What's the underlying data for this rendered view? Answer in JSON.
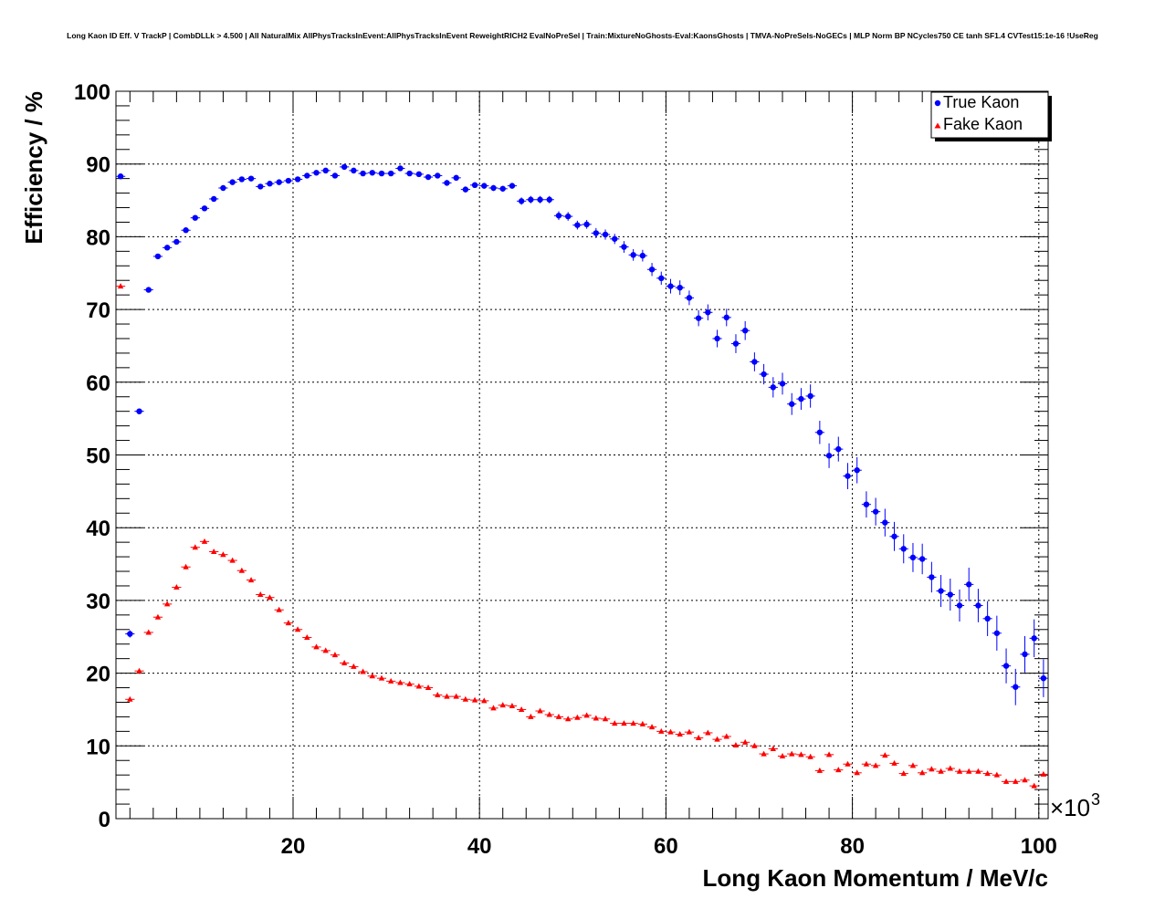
{
  "chart_data": {
    "type": "scatter",
    "title": "Long Kaon ID Eff. V TrackP | CombDLLk > 4.500 | All NaturalMix AllPhysTracksInEvent:AllPhysTracksInEvent ReweightRICH2 EvalNoPreSel | Train:MixtureNoGhosts-Eval:KaonsGhosts | TMVA-NoPreSels-NoGECs | MLP Norm BP NCycles750 CE tanh SF1.4 CVTest15:1e-16 !UseReg",
    "xlabel": "Long Kaon Momentum / MeV/c",
    "ylabel": "Efficiency / %",
    "x_multiplier": "×10",
    "x_multiplier_exp": "3",
    "xlim": [
      1,
      101
    ],
    "ylim": [
      0,
      100
    ],
    "x_ticks": [
      20,
      40,
      60,
      80,
      100
    ],
    "x_tick_labels": [
      "20",
      "40",
      "60",
      "80",
      "100"
    ],
    "y_ticks": [
      0,
      10,
      20,
      30,
      40,
      50,
      60,
      70,
      80,
      90,
      100
    ],
    "y_tick_labels": [
      "0",
      "10",
      "20",
      "30",
      "40",
      "50",
      "60",
      "70",
      "80",
      "90",
      "100"
    ],
    "grid": true,
    "legend_position": "top-right",
    "x": [
      1.5,
      2.5,
      3.5,
      4.5,
      5.5,
      6.5,
      7.5,
      8.5,
      9.5,
      10.5,
      11.5,
      12.5,
      13.5,
      14.5,
      15.5,
      16.5,
      17.5,
      18.5,
      19.5,
      20.5,
      21.5,
      22.5,
      23.5,
      24.5,
      25.5,
      26.5,
      27.5,
      28.5,
      29.5,
      30.5,
      31.5,
      32.5,
      33.5,
      34.5,
      35.5,
      36.5,
      37.5,
      38.5,
      39.5,
      40.5,
      41.5,
      42.5,
      43.5,
      44.5,
      45.5,
      46.5,
      47.5,
      48.5,
      49.5,
      50.5,
      51.5,
      52.5,
      53.5,
      54.5,
      55.5,
      56.5,
      57.5,
      58.5,
      59.5,
      60.5,
      61.5,
      62.5,
      63.5,
      64.5,
      65.5,
      66.5,
      67.5,
      68.5,
      69.5,
      70.5,
      71.5,
      72.5,
      73.5,
      74.5,
      75.5,
      76.5,
      77.5,
      78.5,
      79.5,
      80.5,
      81.5,
      82.5,
      83.5,
      84.5,
      85.5,
      86.5,
      87.5,
      88.5,
      89.5,
      90.5,
      91.5,
      92.5,
      93.5,
      94.5,
      95.5,
      96.5,
      97.5,
      98.5,
      99.5,
      100.5
    ],
    "series": [
      {
        "name": "True Kaon",
        "color": "#0000ff",
        "marker": "circle",
        "values": [
          88.3,
          25.4,
          56.0,
          72.7,
          77.3,
          78.5,
          79.3,
          80.9,
          82.6,
          83.9,
          85.2,
          86.7,
          87.5,
          87.9,
          88.0,
          86.9,
          87.3,
          87.5,
          87.7,
          87.9,
          88.4,
          88.8,
          89.1,
          88.4,
          89.6,
          89.1,
          88.7,
          88.8,
          88.7,
          88.7,
          89.4,
          88.7,
          88.6,
          88.2,
          88.4,
          87.4,
          88.1,
          86.5,
          87.1,
          87.0,
          86.7,
          86.6,
          87.0,
          84.9,
          85.1,
          85.1,
          85.1,
          82.9,
          82.8,
          81.6,
          81.7,
          80.5,
          80.3,
          79.7,
          78.6,
          77.5,
          77.4,
          75.5,
          74.3,
          73.2,
          73.0,
          71.6,
          68.8,
          69.6,
          66.0,
          68.9,
          65.3,
          67.1,
          62.8,
          61.1,
          59.3,
          59.8,
          57.0,
          57.7,
          58.1,
          53.1,
          49.9,
          50.8,
          47.1,
          47.9,
          43.2,
          42.2,
          40.7,
          38.8,
          37.1,
          35.9,
          35.7,
          33.2,
          31.3,
          30.8,
          29.3,
          32.2,
          29.3,
          27.5,
          25.5,
          21.0,
          18.1,
          22.6,
          24.8,
          19.3
        ],
        "errors": [
          0.3,
          0.5,
          0.4,
          0.3,
          0.3,
          0.3,
          0.3,
          0.3,
          0.3,
          0.3,
          0.3,
          0.3,
          0.3,
          0.3,
          0.3,
          0.3,
          0.3,
          0.3,
          0.3,
          0.3,
          0.3,
          0.3,
          0.3,
          0.3,
          0.3,
          0.3,
          0.3,
          0.3,
          0.3,
          0.3,
          0.3,
          0.3,
          0.3,
          0.3,
          0.3,
          0.4,
          0.4,
          0.4,
          0.4,
          0.4,
          0.4,
          0.4,
          0.4,
          0.5,
          0.5,
          0.5,
          0.5,
          0.6,
          0.6,
          0.6,
          0.6,
          0.7,
          0.7,
          0.7,
          0.8,
          0.8,
          0.8,
          0.9,
          0.9,
          1.0,
          1.0,
          1.0,
          1.1,
          1.1,
          1.2,
          1.2,
          1.3,
          1.3,
          1.3,
          1.4,
          1.4,
          1.5,
          1.5,
          1.5,
          1.6,
          1.6,
          1.7,
          1.7,
          1.8,
          1.8,
          1.8,
          1.9,
          1.9,
          2.0,
          2.0,
          2.0,
          2.1,
          2.1,
          2.2,
          2.2,
          2.2,
          2.3,
          2.3,
          2.4,
          2.4,
          2.4,
          2.5,
          2.5,
          2.6,
          2.6
        ]
      },
      {
        "name": "Fake Kaon",
        "color": "#ff0000",
        "marker": "triangle",
        "values": [
          73.2,
          16.4,
          20.3,
          25.6,
          27.7,
          29.5,
          31.8,
          34.6,
          37.3,
          38.1,
          36.7,
          36.3,
          35.5,
          34.1,
          32.8,
          30.8,
          30.4,
          28.7,
          26.9,
          26.0,
          24.9,
          23.6,
          23.1,
          22.5,
          21.4,
          20.9,
          20.2,
          19.6,
          19.3,
          18.9,
          18.7,
          18.5,
          18.2,
          18.0,
          17.0,
          16.8,
          16.8,
          16.4,
          16.3,
          16.2,
          15.2,
          15.6,
          15.5,
          15.0,
          14.0,
          14.8,
          14.3,
          14.0,
          13.7,
          13.9,
          14.2,
          13.8,
          13.7,
          13.1,
          13.1,
          13.1,
          13.0,
          12.6,
          12.0,
          11.9,
          11.6,
          11.9,
          11.1,
          11.8,
          10.9,
          11.3,
          10.1,
          10.5,
          10.0,
          8.9,
          9.6,
          8.6,
          8.9,
          8.8,
          8.5,
          6.6,
          8.8,
          6.7,
          7.5,
          6.3,
          7.5,
          7.3,
          8.7,
          7.6,
          6.2,
          7.3,
          6.3,
          6.8,
          6.5,
          6.9,
          6.5,
          6.5,
          6.5,
          6.2,
          6.0,
          5.1,
          5.1,
          5.3,
          4.5,
          6.1
        ],
        "errors": [
          0.3,
          0.2,
          0.2,
          0.2,
          0.2,
          0.2,
          0.2,
          0.2,
          0.2,
          0.2,
          0.2,
          0.2,
          0.2,
          0.2,
          0.2,
          0.2,
          0.2,
          0.2,
          0.2,
          0.2,
          0.2,
          0.2,
          0.2,
          0.2,
          0.2,
          0.2,
          0.2,
          0.2,
          0.2,
          0.2,
          0.2,
          0.2,
          0.2,
          0.2,
          0.2,
          0.2,
          0.2,
          0.2,
          0.2,
          0.2,
          0.2,
          0.2,
          0.2,
          0.2,
          0.2,
          0.2,
          0.2,
          0.2,
          0.2,
          0.2,
          0.2,
          0.2,
          0.2,
          0.2,
          0.2,
          0.2,
          0.2,
          0.2,
          0.2,
          0.2,
          0.2,
          0.2,
          0.2,
          0.2,
          0.3,
          0.3,
          0.3,
          0.3,
          0.3,
          0.3,
          0.3,
          0.3,
          0.3,
          0.3,
          0.3,
          0.3,
          0.3,
          0.3,
          0.3,
          0.3,
          0.3,
          0.3,
          0.3,
          0.3,
          0.3,
          0.3,
          0.3,
          0.3,
          0.3,
          0.3,
          0.3,
          0.3,
          0.3,
          0.3,
          0.3,
          0.3,
          0.3,
          0.3,
          0.3,
          0.3
        ]
      }
    ]
  }
}
